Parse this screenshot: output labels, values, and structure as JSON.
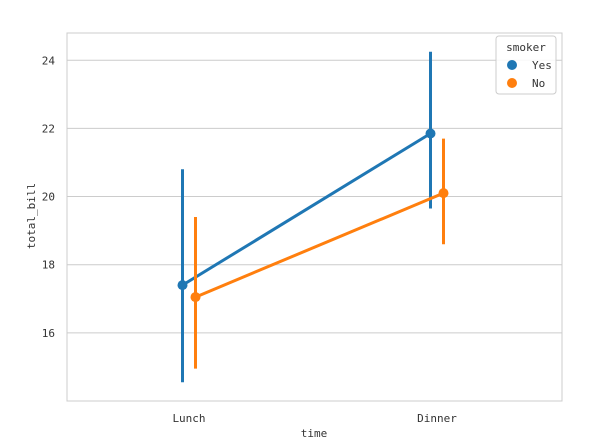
{
  "chart_data": {
    "type": "line",
    "title": "",
    "xlabel": "time",
    "ylabel": "total_bill",
    "categories": [
      "Lunch",
      "Dinner"
    ],
    "ylim": [
      14.0,
      24.8
    ],
    "yticks": [
      16,
      18,
      20,
      22,
      24
    ],
    "grid": "horizontal",
    "legend": {
      "title": "smoker",
      "placement": "top-right"
    },
    "series": [
      {
        "name": "Yes",
        "color": "#1f77b4",
        "values": [
          17.4,
          21.85
        ],
        "ci_low": [
          14.55,
          19.65
        ],
        "ci_high": [
          20.8,
          24.25
        ]
      },
      {
        "name": "No",
        "color": "#ff7f0e",
        "values": [
          17.05,
          20.1
        ],
        "ci_low": [
          14.95,
          18.6
        ],
        "ci_high": [
          19.4,
          21.7
        ]
      }
    ]
  }
}
